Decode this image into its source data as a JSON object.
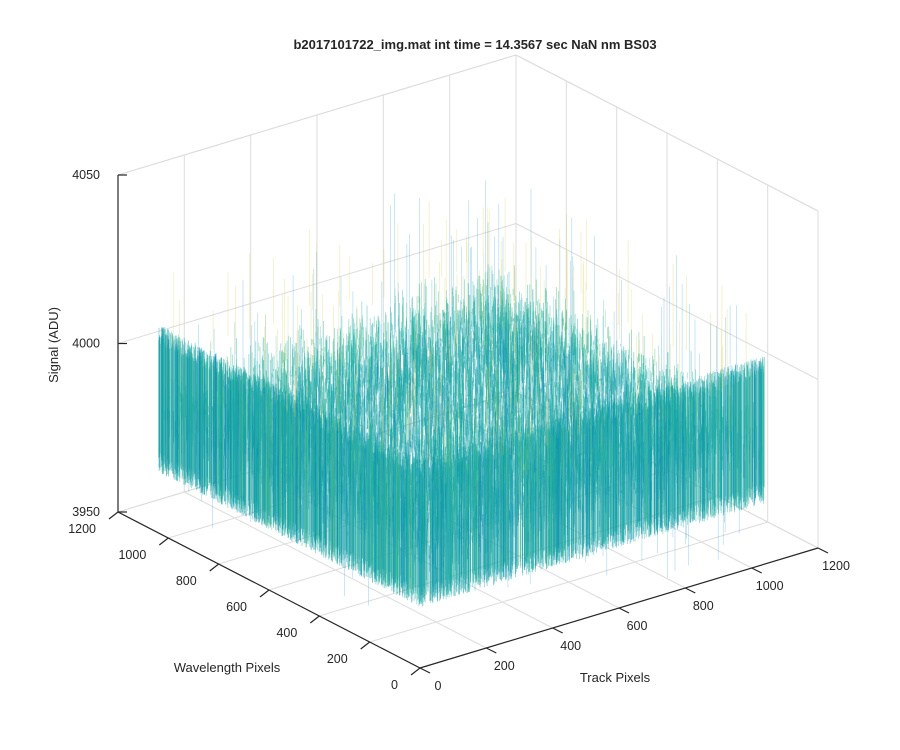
{
  "chart_data": {
    "type": "surface",
    "title": "b2017101722_img.mat int time = 14.3567 sec  NaN nm BS03",
    "xlabel": "Track Pixels",
    "ylabel": "Wavelength Pixels",
    "zlabel": "Signal (ADU)",
    "xlim": [
      0,
      1200
    ],
    "ylim": [
      0,
      1200
    ],
    "zlim": [
      3950,
      4050
    ],
    "x_ticks": [
      0,
      200,
      400,
      600,
      800,
      1000,
      1200
    ],
    "y_ticks": [
      0,
      200,
      400,
      600,
      800,
      1000,
      1200
    ],
    "z_ticks": [
      3950,
      4000,
      4050
    ],
    "x_tick_labels": [
      "0",
      "200",
      "400",
      "600",
      "800",
      "1000",
      "1200"
    ],
    "y_tick_labels": [
      "0",
      "200",
      "400",
      "600",
      "800",
      "1000",
      "1200"
    ],
    "z_tick_labels": [
      "3950",
      "4000",
      "4050"
    ],
    "grid": true,
    "colormap": "parula",
    "colors": {
      "low": "#0072bd",
      "mid": "#1fb5a0",
      "high": "#e8d24a",
      "axis": "#262626",
      "grid": "#dcdcdc"
    },
    "surface": {
      "data_extent_x": [
        0,
        1040
      ],
      "data_extent_y": [
        0,
        1040
      ],
      "mean_signal": 3987,
      "noise_min": 3968,
      "noise_max": 4012,
      "spike_min": 3952,
      "spike_max": 4030
    }
  }
}
